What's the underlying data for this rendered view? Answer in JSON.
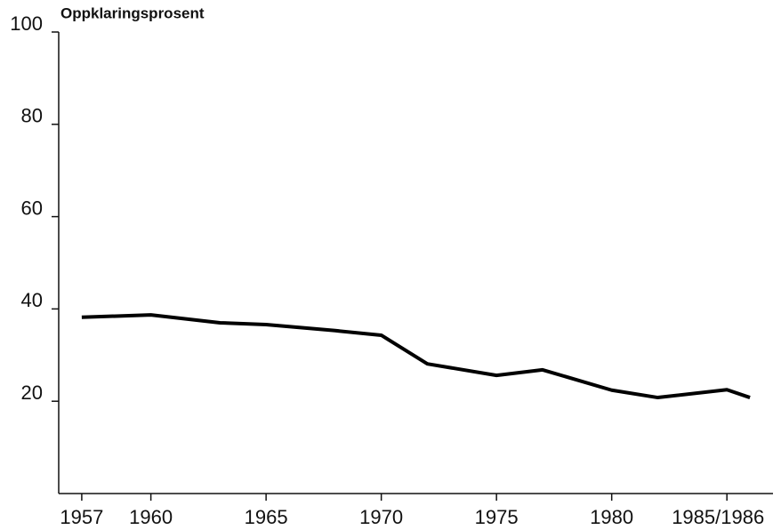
{
  "chart_data": {
    "type": "line",
    "ylabel": "Oppklaringsprosent",
    "x": [
      1957,
      1960,
      1963,
      1965,
      1968,
      1970,
      1972,
      1975,
      1977,
      1980,
      1982,
      1985,
      1986
    ],
    "series": [
      {
        "name": "Oppklaringsprosent",
        "color": "#000000",
        "values": [
          38.2,
          38.7,
          37.0,
          36.6,
          35.3,
          34.3,
          28.1,
          25.6,
          26.8,
          22.4,
          20.8,
          22.5,
          20.8
        ]
      }
    ],
    "xlim": [
      1956,
      1987
    ],
    "xticks": [
      1957,
      1960,
      1965,
      1970,
      1975,
      1980,
      {
        "value": 1985,
        "label": "1985/1986"
      }
    ],
    "ylim": [
      0,
      100
    ],
    "yticks": [
      20,
      40,
      60,
      80,
      100
    ],
    "grid": false
  }
}
